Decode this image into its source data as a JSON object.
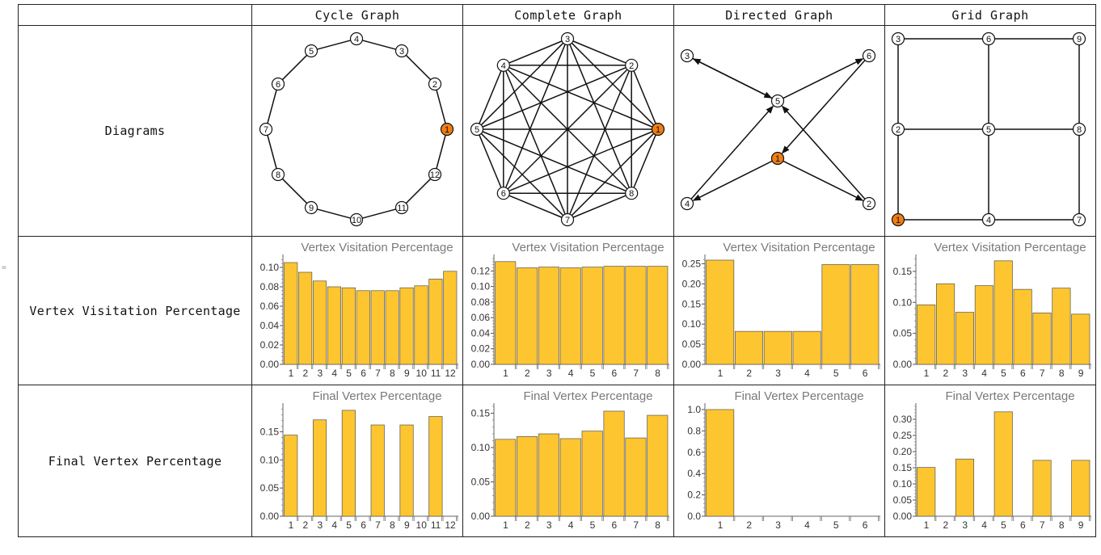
{
  "side_marker": "=",
  "columns": [
    "Cycle Graph",
    "Complete Graph",
    "Directed Graph",
    "Grid Graph"
  ],
  "rows": [
    "Diagrams",
    "Vertex Visitation Percentage",
    "Final Vertex Percentage"
  ],
  "colors": {
    "bar_fill": "#FDC52F",
    "bar_stroke": "#555555",
    "start_vertex": "#F07E13",
    "vertex_fill": "#ffffff",
    "edge": "#111111"
  },
  "graphs": [
    {
      "type": "cycle",
      "labels": [
        "1",
        "2",
        "3",
        "4",
        "5",
        "6",
        "7",
        "8",
        "9",
        "10",
        "11",
        "12"
      ],
      "start_vertex": "1",
      "edges": [
        [
          "1",
          "2"
        ],
        [
          "2",
          "3"
        ],
        [
          "3",
          "4"
        ],
        [
          "4",
          "5"
        ],
        [
          "5",
          "6"
        ],
        [
          "6",
          "7"
        ],
        [
          "7",
          "8"
        ],
        [
          "8",
          "9"
        ],
        [
          "9",
          "10"
        ],
        [
          "10",
          "11"
        ],
        [
          "11",
          "12"
        ],
        [
          "12",
          "1"
        ]
      ],
      "directed": false
    },
    {
      "type": "complete",
      "labels": [
        "1",
        "2",
        "3",
        "4",
        "5",
        "6",
        "7",
        "8"
      ],
      "start_vertex": "1",
      "edges": "all",
      "directed": false
    },
    {
      "type": "directed",
      "labels": [
        "1",
        "2",
        "3",
        "4",
        "5",
        "6"
      ],
      "start_vertex": "1",
      "edges": [
        [
          "1",
          "2"
        ],
        [
          "1",
          "4"
        ],
        [
          "2",
          "5"
        ],
        [
          "3",
          "5"
        ],
        [
          "4",
          "5"
        ],
        [
          "5",
          "3"
        ],
        [
          "5",
          "6"
        ],
        [
          "6",
          "1"
        ]
      ],
      "directed": true
    },
    {
      "type": "grid",
      "labels": [
        "1",
        "2",
        "3",
        "4",
        "5",
        "6",
        "7",
        "8",
        "9"
      ],
      "start_vertex": "1",
      "edges": [
        [
          "1",
          "2"
        ],
        [
          "2",
          "3"
        ],
        [
          "4",
          "5"
        ],
        [
          "5",
          "6"
        ],
        [
          "7",
          "8"
        ],
        [
          "8",
          "9"
        ],
        [
          "1",
          "4"
        ],
        [
          "4",
          "7"
        ],
        [
          "2",
          "5"
        ],
        [
          "5",
          "8"
        ],
        [
          "3",
          "6"
        ],
        [
          "6",
          "9"
        ]
      ],
      "directed": false
    }
  ],
  "chart_data": [
    {
      "id": "visit-cycle",
      "type": "bar",
      "title": "Vertex Visitation Percentage",
      "categories": [
        "1",
        "2",
        "3",
        "4",
        "5",
        "6",
        "7",
        "8",
        "9",
        "10",
        "11",
        "12"
      ],
      "values": [
        0.105,
        0.095,
        0.086,
        0.08,
        0.079,
        0.076,
        0.076,
        0.076,
        0.079,
        0.081,
        0.088,
        0.096
      ],
      "ylim": [
        0,
        0.11
      ],
      "yticks": [
        0,
        0.02,
        0.04,
        0.06,
        0.08,
        0.1
      ],
      "ytick_labels": [
        "0.00",
        "0.02",
        "0.04",
        "0.06",
        "0.08",
        "0.10"
      ]
    },
    {
      "id": "visit-complete",
      "type": "bar",
      "title": "Vertex Visitation Percentage",
      "categories": [
        "1",
        "2",
        "3",
        "4",
        "5",
        "6",
        "7",
        "8"
      ],
      "values": [
        0.132,
        0.124,
        0.125,
        0.124,
        0.125,
        0.126,
        0.126,
        0.126
      ],
      "ylim": [
        0,
        0.137
      ],
      "yticks": [
        0,
        0.02,
        0.04,
        0.06,
        0.08,
        0.1,
        0.12
      ],
      "ytick_labels": [
        "0.00",
        "0.02",
        "0.04",
        "0.06",
        "0.08",
        "0.10",
        "0.12"
      ]
    },
    {
      "id": "visit-directed",
      "type": "bar",
      "title": "Vertex Visitation Percentage",
      "categories": [
        "1",
        "2",
        "3",
        "4",
        "5",
        "6"
      ],
      "values": [
        0.259,
        0.082,
        0.082,
        0.082,
        0.248,
        0.248
      ],
      "ylim": [
        0,
        0.265
      ],
      "yticks": [
        0,
        0.05,
        0.1,
        0.15,
        0.2,
        0.25
      ],
      "ytick_labels": [
        "0.00",
        "0.05",
        "0.10",
        "0.15",
        "0.20",
        "0.25"
      ]
    },
    {
      "id": "visit-grid",
      "type": "bar",
      "title": "Vertex Visitation Percentage",
      "categories": [
        "1",
        "2",
        "3",
        "4",
        "5",
        "6",
        "7",
        "8",
        "9"
      ],
      "values": [
        0.096,
        0.13,
        0.084,
        0.127,
        0.167,
        0.121,
        0.083,
        0.123,
        0.081
      ],
      "ylim": [
        0,
        0.172
      ],
      "yticks": [
        0,
        0.05,
        0.1,
        0.15
      ],
      "ytick_labels": [
        "0.00",
        "0.05",
        "0.10",
        "0.15"
      ]
    },
    {
      "id": "final-cycle",
      "type": "bar",
      "title": "Final Vertex Percentage",
      "categories": [
        "1",
        "2",
        "3",
        "4",
        "5",
        "6",
        "7",
        "8",
        "9",
        "10",
        "11",
        "12"
      ],
      "values": [
        0.144,
        0,
        0.171,
        0,
        0.188,
        0,
        0.162,
        0,
        0.162,
        0,
        0.177,
        0
      ],
      "ylim": [
        0,
        0.195
      ],
      "yticks": [
        0,
        0.05,
        0.1,
        0.15
      ],
      "ytick_labels": [
        "0.00",
        "0.05",
        "0.10",
        "0.15"
      ]
    },
    {
      "id": "final-complete",
      "type": "bar",
      "title": "Final Vertex Percentage",
      "categories": [
        "1",
        "2",
        "3",
        "4",
        "5",
        "6",
        "7",
        "8"
      ],
      "values": [
        0.112,
        0.116,
        0.12,
        0.113,
        0.124,
        0.153,
        0.114,
        0.147
      ],
      "ylim": [
        0,
        0.16
      ],
      "yticks": [
        0,
        0.05,
        0.1,
        0.15
      ],
      "ytick_labels": [
        "0.00",
        "0.05",
        "0.10",
        "0.15"
      ]
    },
    {
      "id": "final-directed",
      "type": "bar",
      "title": "Final Vertex Percentage",
      "categories": [
        "1",
        "2",
        "3",
        "4",
        "5",
        "6"
      ],
      "values": [
        1.0,
        0,
        0,
        0,
        0,
        0
      ],
      "ylim": [
        0,
        1.03
      ],
      "yticks": [
        0,
        0.2,
        0.4,
        0.6,
        0.8,
        1.0
      ],
      "ytick_labels": [
        "0.0",
        "0.2",
        "0.4",
        "0.6",
        "0.8",
        "1.0"
      ]
    },
    {
      "id": "final-grid",
      "type": "bar",
      "title": "Final Vertex Percentage",
      "categories": [
        "1",
        "2",
        "3",
        "4",
        "5",
        "6",
        "7",
        "8",
        "9"
      ],
      "values": [
        0.151,
        0,
        0.177,
        0,
        0.323,
        0,
        0.173,
        0,
        0.173
      ],
      "ylim": [
        0,
        0.34
      ],
      "yticks": [
        0,
        0.05,
        0.1,
        0.15,
        0.2,
        0.25,
        0.3
      ],
      "ytick_labels": [
        "0.00",
        "0.05",
        "0.10",
        "0.15",
        "0.20",
        "0.25",
        "0.30"
      ]
    }
  ]
}
